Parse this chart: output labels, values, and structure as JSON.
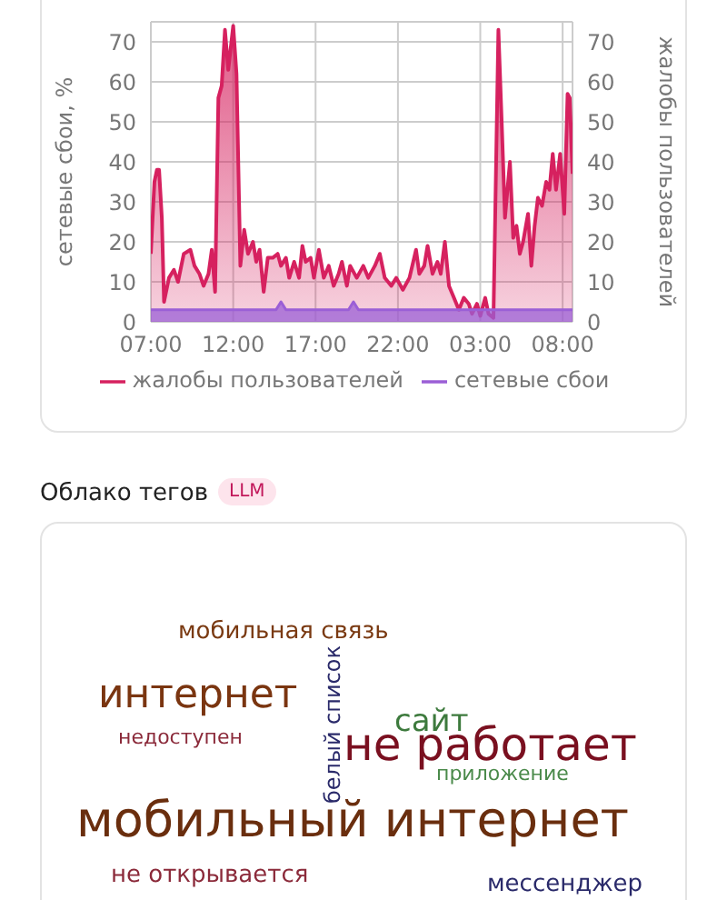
{
  "chart_data": [
    {
      "type": "area",
      "ylabel": "сетевые сбои, %",
      "y2label": "жалобы пользователей",
      "xlim": [
        "--01-01T07:00",
        "--01-02T08:36"
      ],
      "xticks": [
        {
          "value": "--01-01T07:00",
          "label": "07:00"
        },
        {
          "value": "--01-01T12:00",
          "label": "12:00"
        },
        {
          "value": "--01-01T17:00",
          "label": "17:00"
        },
        {
          "value": "--01-01T22:00",
          "label": "22:00"
        },
        {
          "value": "--01-02T03:00",
          "label": "03:00"
        },
        {
          "value": "--01-02T08:00",
          "label": "08:00"
        }
      ],
      "ylim": [
        0,
        75
      ],
      "yticks": [
        0,
        10,
        20,
        30,
        40,
        50,
        60,
        70
      ],
      "y2lim": [
        0,
        75
      ],
      "y2ticks": [
        0,
        10,
        20,
        30,
        40,
        50,
        60,
        70
      ],
      "grid": true,
      "legend": "bottom",
      "series": [
        {
          "name": "жалобы пользователей",
          "color": "#d6215f",
          "axis": "y2",
          "x": [
            "--01-01T07:00",
            "--01-01T07:13",
            "--01-01T07:22",
            "--01-01T07:30",
            "--01-01T07:40",
            "--01-01T07:48",
            "--01-01T08:06",
            "--01-01T08:24",
            "--01-01T08:39",
            "--01-01T09:00",
            "--01-01T09:24",
            "--01-01T09:39",
            "--01-01T09:57",
            "--01-01T10:12",
            "--01-01T10:30",
            "--01-01T10:42",
            "--01-01T10:54",
            "--01-01T11:06",
            "--01-01T11:18",
            "--01-01T11:30",
            "--01-01T11:42",
            "--01-01T12:00",
            "--01-01T12:12",
            "--01-01T12:26",
            "--01-01T12:40",
            "--01-01T12:54",
            "--01-01T13:12",
            "--01-01T13:24",
            "--01-01T13:36",
            "--01-01T13:51",
            "--01-01T14:06",
            "--01-01T14:24",
            "--01-01T14:42",
            "--01-01T14:54",
            "--01-01T15:12",
            "--01-01T15:24",
            "--01-01T15:42",
            "--01-01T16:00",
            "--01-01T16:12",
            "--01-01T16:24",
            "--01-01T16:42",
            "--01-01T16:54",
            "--01-01T17:12",
            "--01-01T17:30",
            "--01-01T17:48",
            "--01-01T18:06",
            "--01-01T18:24",
            "--01-01T18:36",
            "--01-01T18:54",
            "--01-01T19:06",
            "--01-01T19:30",
            "--01-01T19:54",
            "--01-01T20:12",
            "--01-01T20:36",
            "--01-01T20:54",
            "--01-01T21:12",
            "--01-01T21:36",
            "--01-01T21:54",
            "--01-01T22:18",
            "--01-01T22:42",
            "--01-01T23:06",
            "--01-01T23:18",
            "--01-01T23:36",
            "--01-01T23:48",
            "--01-02T00:06",
            "--01-02T00:24",
            "--01-02T00:36",
            "--01-02T00:51",
            "--01-02T01:06",
            "--01-02T01:24",
            "--01-02T01:42",
            "--01-02T02:00",
            "--01-02T02:18",
            "--01-02T02:30",
            "--01-02T02:48",
            "--01-02T03:00",
            "--01-02T03:18",
            "--01-02T03:30",
            "--01-02T03:48",
            "--01-02T04:06",
            "--01-02T04:18",
            "--01-02T04:30",
            "--01-02T04:48",
            "--01-02T05:00",
            "--01-02T05:12",
            "--01-02T05:24",
            "--01-02T05:36",
            "--01-02T05:54",
            "--01-02T06:06",
            "--01-02T06:18",
            "--01-02T06:30",
            "--01-02T06:45",
            "--01-02T07:00",
            "--01-02T07:12",
            "--01-02T07:24",
            "--01-02T07:36",
            "--01-02T07:51",
            "--01-02T08:06",
            "--01-02T08:18",
            "--01-02T08:26",
            "--01-02T08:36"
          ],
          "values": [
            17,
            35,
            38,
            38,
            26,
            5,
            11,
            13,
            10,
            17,
            18,
            14,
            12,
            9,
            12,
            18,
            7.5,
            56,
            59,
            73,
            63,
            74,
            62,
            14,
            23,
            17,
            20,
            15,
            18,
            7.5,
            16,
            16,
            17,
            14,
            16,
            11,
            15,
            11,
            19,
            15,
            16,
            11,
            18,
            11,
            14,
            9,
            12,
            15,
            9,
            14,
            11,
            14,
            11,
            14,
            17,
            11,
            9,
            11,
            8,
            11,
            18,
            12,
            14,
            19,
            12,
            15,
            12,
            20,
            9,
            6,
            3,
            6,
            4.5,
            2,
            4.5,
            1.5,
            6,
            2,
            1,
            73,
            50,
            26,
            40,
            21,
            24,
            17,
            20,
            27,
            14,
            24,
            31,
            29,
            35,
            33,
            42,
            33,
            42,
            27,
            57,
            56,
            37
          ]
        },
        {
          "name": "сетевые сбои",
          "color": "#9b5fd6",
          "axis": "y",
          "x": [
            "--01-01T07:00",
            "--01-01T14:36",
            "--01-01T14:54",
            "--01-01T15:12",
            "--01-01T19:00",
            "--01-01T19:18",
            "--01-01T19:36",
            "--01-02T08:36"
          ],
          "values": [
            3,
            3,
            5,
            3,
            3,
            5,
            3,
            3
          ]
        }
      ]
    },
    {
      "type": "other",
      "title": "Облако тегов",
      "subtitle": "LLM",
      "annotations": [
        "мобильная связь",
        "интернет",
        "недоступен",
        "белый список",
        "сайт",
        "не работает",
        "приложение",
        "мобильный интернет",
        "не открывается",
        "мессенджер"
      ],
      "colors": [
        "#7a3a12",
        "#7a3510",
        "#8b2a3a",
        "#2a2a6a",
        "#3d7a3d",
        "#7a1020",
        "#4a8a4a",
        "#6a2e0e",
        "#8b2a3a",
        "#2a2a6a"
      ]
    }
  ]
}
